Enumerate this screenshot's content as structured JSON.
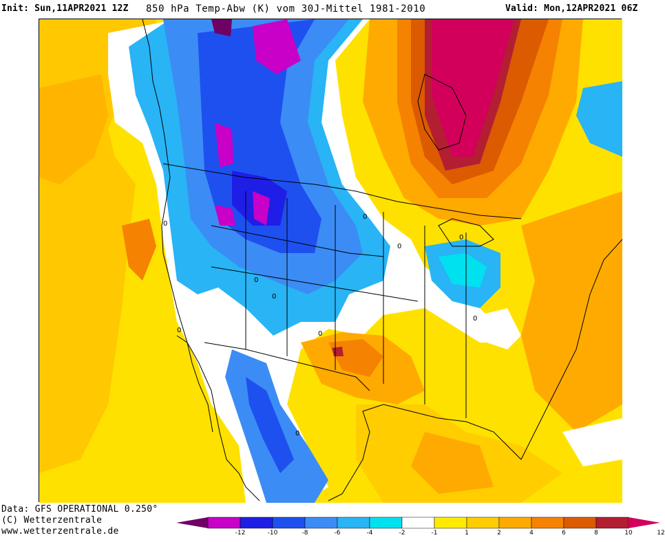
{
  "header": {
    "init": "Init: Sun,11APR2021 12Z",
    "title": "850 hPa Temp-Abw (K) vom 30J-Mittel 1981-2010",
    "valid": "Valid: Mon,12APR2021 06Z"
  },
  "footer": {
    "data_source": "Data: GFS OPERATIONAL 0.250°",
    "copyright": "(C) Wetterzentrale",
    "website": "www.wetterzentrale.de"
  },
  "colorbar": {
    "colors": [
      "#6e0066",
      "#c800c8",
      "#1e1ee6",
      "#1e50f0",
      "#3c8cf5",
      "#28b4f5",
      "#00e1f0",
      "#ffffff",
      "#ffeb00",
      "#ffcd00",
      "#ffaa00",
      "#f58200",
      "#dc5a00",
      "#b41e32",
      "#d2005a"
    ],
    "ticks": [
      "-12",
      "-10",
      "-8",
      "-6",
      "-4",
      "-2",
      "-1",
      "1",
      "2",
      "4",
      "6",
      "8",
      "10",
      "12"
    ]
  },
  "map": {
    "labels": [
      "0",
      "0",
      "0",
      "0",
      "0",
      "0",
      "0",
      "0",
      "0",
      "0"
    ]
  }
}
